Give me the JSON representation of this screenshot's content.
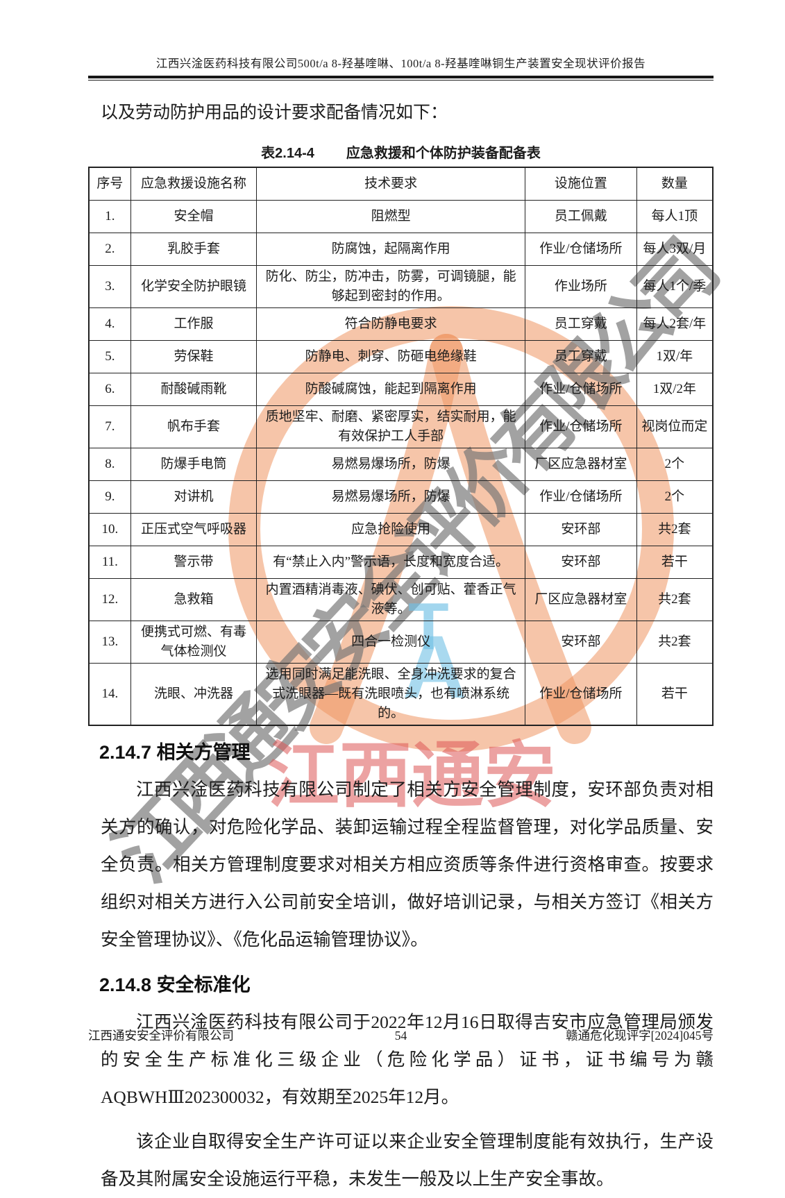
{
  "page": {
    "header_title": "江西兴淦医药科技有限公司500t/a 8-羟基喹啉、100t/a 8-羟基喹啉铜生产装置安全现状评价报告",
    "intro_text": "以及劳动防护用品的设计要求配备情况如下：",
    "footer": {
      "company": "江西通安安全评价有限公司",
      "page_number": "54",
      "doc_number": "赣通危化现评字[2024]045号"
    }
  },
  "table": {
    "caption_label": "表2.14-4",
    "caption_title": "应急救援和个体防护装备配备表",
    "columns": [
      "序号",
      "应急救援设施名称",
      "技术要求",
      "设施位置",
      "数量"
    ],
    "rows": [
      [
        "1.",
        "安全帽",
        "阻燃型",
        "员工佩戴",
        "每人1顶"
      ],
      [
        "2.",
        "乳胶手套",
        "防腐蚀，起隔离作用",
        "作业/仓储场所",
        "每人3双/月"
      ],
      [
        "3.",
        "化学安全防护眼镜",
        "防化、防尘，防冲击，防雾，可调镜腿，能够起到密封的作用。",
        "作业场所",
        "每人1个/季"
      ],
      [
        "4.",
        "工作服",
        "符合防静电要求",
        "员工穿戴",
        "每人2套/年"
      ],
      [
        "5.",
        "劳保鞋",
        "防静电、刺穿、防砸电绝缘鞋",
        "员工穿戴",
        "1双/年"
      ],
      [
        "6.",
        "耐酸碱雨靴",
        "防酸碱腐蚀，能起到隔离作用",
        "作业/仓储场所",
        "1双/2年"
      ],
      [
        "7.",
        "帆布手套",
        "质地坚牢、耐磨、紧密厚实，结实耐用，能有效保护工人手部",
        "作业/仓储场所",
        "视岗位而定"
      ],
      [
        "8.",
        "防爆手电筒",
        "易燃易爆场所，防爆",
        "厂区应急器材室",
        "2个"
      ],
      [
        "9.",
        "对讲机",
        "易燃易爆场所，防爆",
        "作业/仓储场所",
        "2个"
      ],
      [
        "10.",
        "正压式空气呼吸器",
        "应急抢险使用",
        "安环部",
        "共2套"
      ],
      [
        "11.",
        "警示带",
        "有“禁止入内”警示语，长度和宽度合适。",
        "安环部",
        "若干"
      ],
      [
        "12.",
        "急救箱",
        "内置酒精消毒液、碘伏、创可贴、藿香正气液等。",
        "厂区应急器材室",
        "共2套"
      ],
      [
        "13.",
        "便携式可燃、有毒气体检测仪",
        "四合一检测仪",
        "安环部",
        "共2套"
      ],
      [
        "14.",
        "洗眼、冲洗器",
        "选用同时满足能洗眼、全身冲洗要求的复合式洗眼器—既有洗眼喷头，也有喷淋系统的。",
        "作业/仓储场所",
        "若干"
      ]
    ]
  },
  "sections": [
    {
      "heading": "2.14.7  相关方管理",
      "paragraphs": [
        "江西兴淦医药科技有限公司制定了相关方安全管理制度，安环部负责对相关方的确认，对危险化学品、装卸运输过程全程监督管理，对化学品质量、安全负责。相关方管理制度要求对相关方相应资质等条件进行资格审查。按要求组织对相关方进行入公司前安全培训，做好培训记录，与相关方签订《相关方安全管理协议》、《危化品运输管理协议》。"
      ]
    },
    {
      "heading": "2.14.8  安全标准化",
      "paragraphs": [
        "江西兴淦医药科技有限公司于2022年12月16日取得吉安市应急管理局颁发的安全生产标准化三级企业（危险化学品）证书，证书编号为赣AQBWHⅢ202300032，有效期至2025年12月。",
        "该企业自取得安全生产许可证以来企业安全管理制度能有效执行，生产设备及其附属安全设施运行平稳，未发生一般及以上生产安全事故。"
      ]
    }
  ],
  "watermark": {
    "diagonal_text": "江西通安安全评价有限公司",
    "red_text": "江西通安",
    "blue_text_t": "T",
    "blue_text_a": "A",
    "colors": {
      "ring_salmon": "#ef9a69",
      "red": "#dd5656",
      "blue": "#70c0e5",
      "gray": "#767676"
    }
  }
}
